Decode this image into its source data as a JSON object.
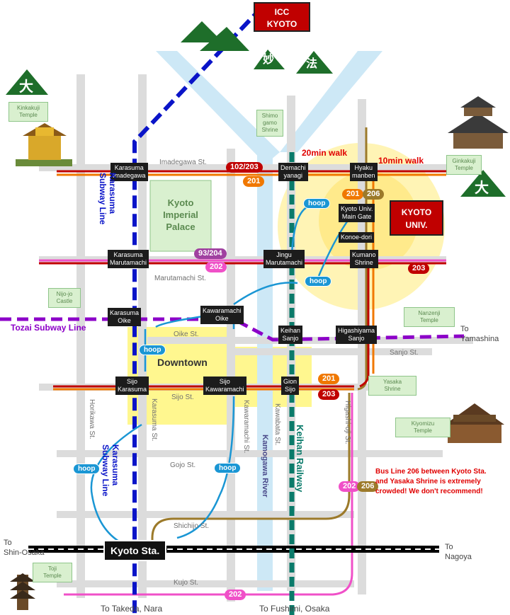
{
  "markers": {
    "icc": "ICC\nKYOTO",
    "kyoto_univ": "KYOTO\nUNIV.",
    "dai_left": "大",
    "dai_right": "大",
    "myo": "妙",
    "ho": "法"
  },
  "stations": {
    "karasuma_imadegawa": "Karasuma\nImadegawa",
    "demachi_yanagi": "Demachi\nyanagi",
    "hyakumanben": "Hyaku\nmanben",
    "kyoto_univ_main_gate": "Kyoto Univ.\nMain Gate",
    "konoe_dori": "Konoe-dori",
    "karasuma_marutamachi": "Karasuma\nMarutamachi",
    "jingu_marutamachi": "Jingu\nMarutamachi",
    "kumano_shrine": "Kumano\nShrine",
    "karasuma_oike": "Karasuma\nOike",
    "kawaramachi_oike": "Kawaramachi\nOike",
    "keihan_sanjo": "Keihan\nSanjo",
    "higashiyama_sanjo": "Higashiyama\nSanjo",
    "shijo_karasuma": "Sijo\nKarasuma",
    "shijo_kawaramachi": "Sijo\nKawaramachi",
    "gion_shijo": "Gion\nSijo",
    "kyoto_sta": "Kyoto Sta."
  },
  "landmarks": {
    "kinkakuji": "Kinkakuji\nTemple",
    "shimogamo": "Shimo\ngamo\nShrine",
    "ginkakuji": "Ginkakuji\nTemple",
    "imperial_palace": "Kyoto\nImperial\nPalace",
    "nijo": "Nijo-jo\nCastle",
    "nanzenji": "Nanzenji\nTemple",
    "yasaka": "Yasaka\nShrine",
    "kiyomizu": "Kiyomizu\nTemple",
    "toji": "Toji\nTemple"
  },
  "streets": {
    "imadegawa": "Imadegawa St.",
    "marutamachi": "Marutamachi St.",
    "oike": "Oike St.",
    "sanjo": "Sanjo St.",
    "shijo": "Sijo St.",
    "gojo": "Gojo St.",
    "shichijo": "Shichijo St.",
    "kujo": "Kujo St.",
    "horikawa": "Horikawa St.",
    "karasuma": "Karasuma St.",
    "kawaramachi": "Kawaramachi St.",
    "kawabata": "Kawabata St.",
    "higashioji": "Higashi-oji St."
  },
  "lines": {
    "karasuma_subway_top": "Karasuma\nSubway Line",
    "karasuma_subway_bottom": "Karasuma\nSubway Line",
    "tozai": "Tozai Subway Line",
    "keihan": "Keihan Railway",
    "kamogawa": "Kamogawa River",
    "downtown": "Downtown"
  },
  "buses": {
    "b102_203": "102/203",
    "b201_top": "201",
    "b201_hyaku": "201",
    "b206_hyaku": "206",
    "b93_204": "93/204",
    "b202_maru": "202",
    "b203_kumano": "203",
    "b201_gion": "201",
    "b203_gion": "203",
    "b202_east": "202",
    "b206_east": "206",
    "b202_kujo": "202"
  },
  "hoop": {
    "h1": "hoop",
    "h2": "hoop",
    "h3": "hoop",
    "h4": "hoop",
    "h5": "hoop"
  },
  "walks": {
    "walk20": "20min walk",
    "walk10": "10min walk"
  },
  "directions": {
    "yamashina": "To\nYamashina",
    "shin_osaka": "To\nShin-Osaka",
    "nagoya": "To\nNagoya",
    "takeda_nara": "To Takeda, Nara",
    "fushimi_osaka": "To Fushimi, Osaka"
  },
  "notice": "Bus Line 206 between Kyoto Sta.\nand Yasaka Shrine is extremely\ncrowded! We don't recommend!",
  "colors": {
    "karasuma_subway": "#0a14c8",
    "tozai_subway": "#8c00c8",
    "keihan": "#0a7a6a",
    "hoop": "#1a96d4",
    "bus_red": "#c00000",
    "bus_orange": "#f07800",
    "bus_pink": "#f050c8",
    "bus_olive": "#9c7a2a",
    "bus_purple": "#a040a0",
    "river": "#cde8f6",
    "street": "#d9d9d9"
  }
}
